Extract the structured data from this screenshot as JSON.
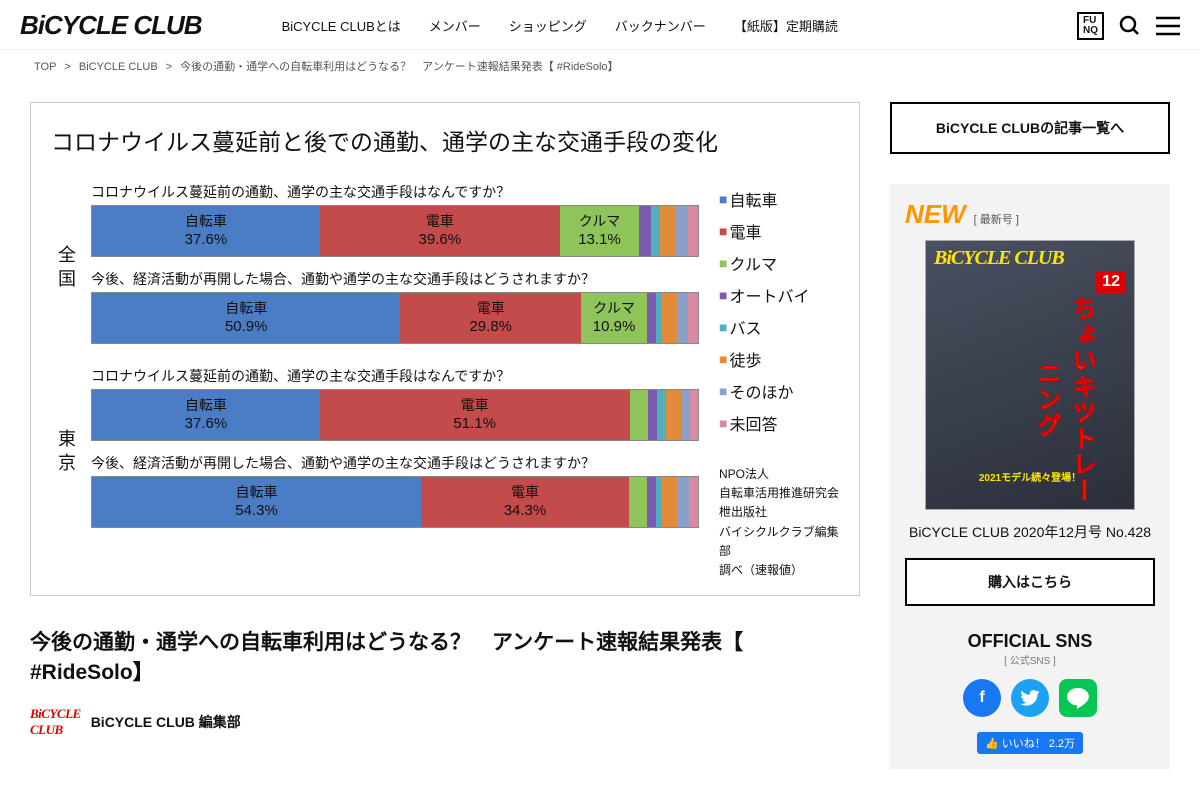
{
  "header": {
    "logo": "BiCYCLE CLUB",
    "nav": [
      "BiCYCLE CLUBとは",
      "メンバー",
      "ショッピング",
      "バックナンバー",
      "【紙版】定期購読"
    ],
    "funq": "FU\nNQ"
  },
  "breadcrumb": [
    "TOP",
    "BiCYCLE CLUB",
    "今後の通勤・通学への自転車利用はどうなる？　アンケート速報結果発表【 #RideSolo】"
  ],
  "chart": {
    "title": "コロナウイルス蔓延前と後での通勤、通学の主な交通手段の変化",
    "questions": {
      "before": "コロナウイルス蔓延前の通勤、通学の主な交通手段はなんですか？",
      "after": "今後、経済活動が再開した場合、通勤や通学の主な交通手段はどうされますか？"
    },
    "legend": [
      {
        "label": "自転車",
        "color": "#4b7dc4"
      },
      {
        "label": "電車",
        "color": "#c44b4b"
      },
      {
        "label": "クルマ",
        "color": "#8fc45a"
      },
      {
        "label": "オートバイ",
        "color": "#7a5bb0"
      },
      {
        "label": "バス",
        "color": "#4fb0c0"
      },
      {
        "label": "徒歩",
        "color": "#e08a3a"
      },
      {
        "label": "そのほか",
        "color": "#8aa0c8"
      },
      {
        "label": "未回答",
        "color": "#d88aa0"
      }
    ],
    "regions": [
      {
        "label": "全国",
        "bars": [
          {
            "q": "before",
            "segs": [
              {
                "label": "自転車",
                "pct": 37.6,
                "color": "#4b7dc4",
                "show": true
              },
              {
                "label": "電車",
                "pct": 39.6,
                "color": "#c44b4b",
                "show": true
              },
              {
                "label": "クルマ",
                "pct": 13.1,
                "color": "#8fc45a",
                "show": true
              },
              {
                "label": "",
                "pct": 2.0,
                "color": "#7a5bb0",
                "show": false
              },
              {
                "label": "",
                "pct": 1.5,
                "color": "#4fb0c0",
                "show": false
              },
              {
                "label": "",
                "pct": 2.5,
                "color": "#e08a3a",
                "show": false
              },
              {
                "label": "",
                "pct": 2.0,
                "color": "#8aa0c8",
                "show": false
              },
              {
                "label": "",
                "pct": 1.7,
                "color": "#d88aa0",
                "show": false
              }
            ]
          },
          {
            "q": "after",
            "segs": [
              {
                "label": "自転車",
                "pct": 50.9,
                "color": "#4b7dc4",
                "show": true
              },
              {
                "label": "電車",
                "pct": 29.8,
                "color": "#c44b4b",
                "show": true
              },
              {
                "label": "クルマ",
                "pct": 10.9,
                "color": "#8fc45a",
                "show": true
              },
              {
                "label": "",
                "pct": 1.5,
                "color": "#7a5bb0",
                "show": false
              },
              {
                "label": "",
                "pct": 1.0,
                "color": "#4fb0c0",
                "show": false
              },
              {
                "label": "",
                "pct": 2.5,
                "color": "#e08a3a",
                "show": false
              },
              {
                "label": "",
                "pct": 1.8,
                "color": "#8aa0c8",
                "show": false
              },
              {
                "label": "",
                "pct": 1.6,
                "color": "#d88aa0",
                "show": false
              }
            ]
          }
        ]
      },
      {
        "label": "東京",
        "bars": [
          {
            "q": "before",
            "segs": [
              {
                "label": "自転車",
                "pct": 37.6,
                "color": "#4b7dc4",
                "show": true
              },
              {
                "label": "電車",
                "pct": 51.1,
                "color": "#c44b4b",
                "show": true
              },
              {
                "label": "",
                "pct": 3.0,
                "color": "#8fc45a",
                "show": false
              },
              {
                "label": "",
                "pct": 1.5,
                "color": "#7a5bb0",
                "show": false
              },
              {
                "label": "",
                "pct": 1.5,
                "color": "#4fb0c0",
                "show": false
              },
              {
                "label": "",
                "pct": 2.5,
                "color": "#e08a3a",
                "show": false
              },
              {
                "label": "",
                "pct": 1.5,
                "color": "#8aa0c8",
                "show": false
              },
              {
                "label": "",
                "pct": 1.3,
                "color": "#d88aa0",
                "show": false
              }
            ]
          },
          {
            "q": "after",
            "segs": [
              {
                "label": "自転車",
                "pct": 54.3,
                "color": "#4b7dc4",
                "show": true
              },
              {
                "label": "電車",
                "pct": 34.3,
                "color": "#c44b4b",
                "show": true
              },
              {
                "label": "",
                "pct": 3.0,
                "color": "#8fc45a",
                "show": false
              },
              {
                "label": "",
                "pct": 1.5,
                "color": "#7a5bb0",
                "show": false
              },
              {
                "label": "",
                "pct": 1.0,
                "color": "#4fb0c0",
                "show": false
              },
              {
                "label": "",
                "pct": 2.5,
                "color": "#e08a3a",
                "show": false
              },
              {
                "label": "",
                "pct": 2.0,
                "color": "#8aa0c8",
                "show": false
              },
              {
                "label": "",
                "pct": 1.4,
                "color": "#d88aa0",
                "show": false
              }
            ]
          }
        ]
      }
    ],
    "credit": "NPO法人\n自転車活用推進研究会\n枻出版社\nバイシクルクラブ編集部\n調べ（速報値）"
  },
  "article": {
    "title": "今後の通勤・通学への自転車利用はどうなる？　アンケート速報結果発表【 #RideSolo】",
    "author_logo": "BiCYCLE\nCLUB",
    "author": "BiCYCLE CLUB 編集部"
  },
  "sidebar": {
    "link": "BiCYCLE CLUBの記事一覧へ",
    "new_label": "NEW",
    "new_sub": "[ 最新号 ]",
    "mag_logo": "BiCYCLE CLUB",
    "mag_num": "12",
    "mag_headline": "ちょいキツトレーニング",
    "mag_sub": "2021モデル続々登場！",
    "mag_title": "BiCYCLE CLUB 2020年12月号 No.428",
    "buy": "購入はこちら",
    "sns_title": "OFFICIAL SNS",
    "sns_sub": "[ 公式SNS ]",
    "like": "👍 いいね！ 2.2万"
  }
}
